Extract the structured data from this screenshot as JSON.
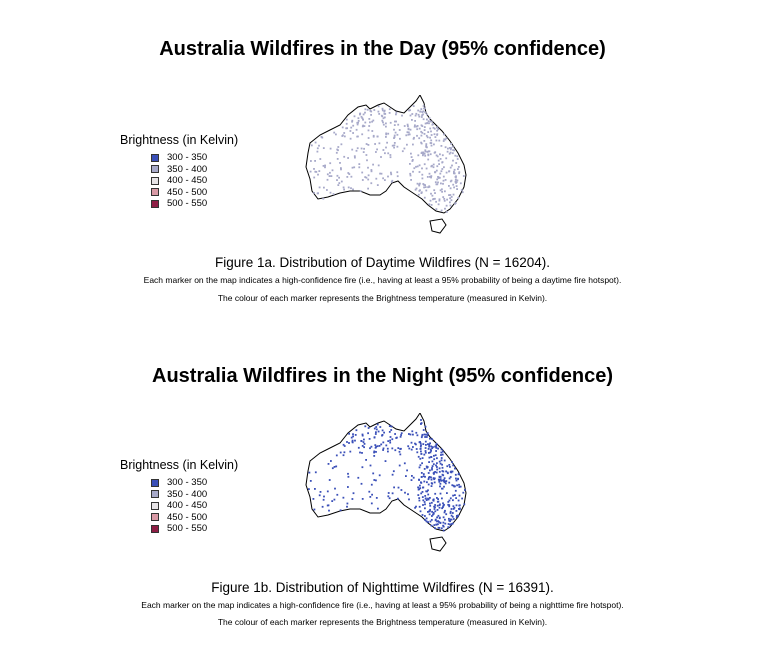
{
  "day": {
    "title": "Australia Wildfires in the Day (95% confidence)",
    "legend_title": "Brightness (in Kelvin)",
    "caption": "Figure 1a. Distribution of Daytime Wildfires (N = 16204).",
    "note1": "Each marker on the map indicates a high-confidence fire (i.e., having at least a 95% probability of being a daytime fire hotspot).",
    "note2": "The colour of each marker represents the Brightness temperature (measured in Kelvin).",
    "marker_color": "#a7a9c9"
  },
  "night": {
    "title": "Australia Wildfires in the Night (95% confidence)",
    "legend_title": "Brightness (in Kelvin)",
    "caption": "Figure 1b. Distribution of Nighttime Wildfires (N = 16391).",
    "note1": "Each marker on the map indicates a high-confidence fire (i.e., having at least a 95% probability of being a nighttime fire hotspot).",
    "note2": "The colour of each marker represents the Brightness temperature (measured in Kelvin).",
    "marker_color": "#3a4fb8"
  },
  "legend": [
    {
      "label": "300 - 350",
      "color": "#3a4fb8"
    },
    {
      "label": "350 - 400",
      "color": "#a7a9c9"
    },
    {
      "label": "400 - 450",
      "color": "#e6e3e6"
    },
    {
      "label": "450 - 500",
      "color": "#d99aa6"
    },
    {
      "label": "500 - 550",
      "color": "#8e1e45"
    }
  ]
}
